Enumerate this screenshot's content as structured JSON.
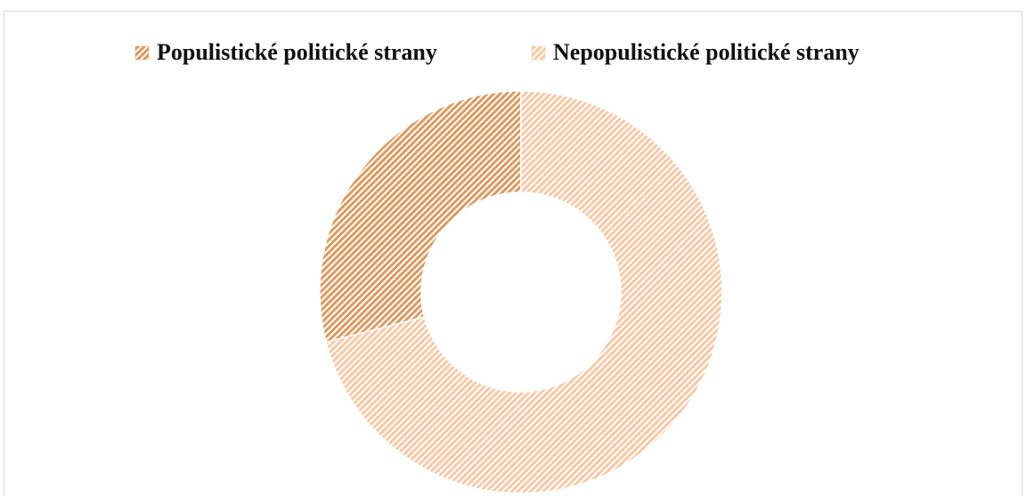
{
  "chart_data": {
    "type": "donut",
    "series": [
      {
        "name": "Populistické politické strany",
        "color": "#dc9a60",
        "values": [
          29
        ]
      },
      {
        "name": "Nepopulistické politické strany",
        "color": "#f9c8a6",
        "values": [
          71
        ]
      }
    ],
    "legend": "top"
  }
}
